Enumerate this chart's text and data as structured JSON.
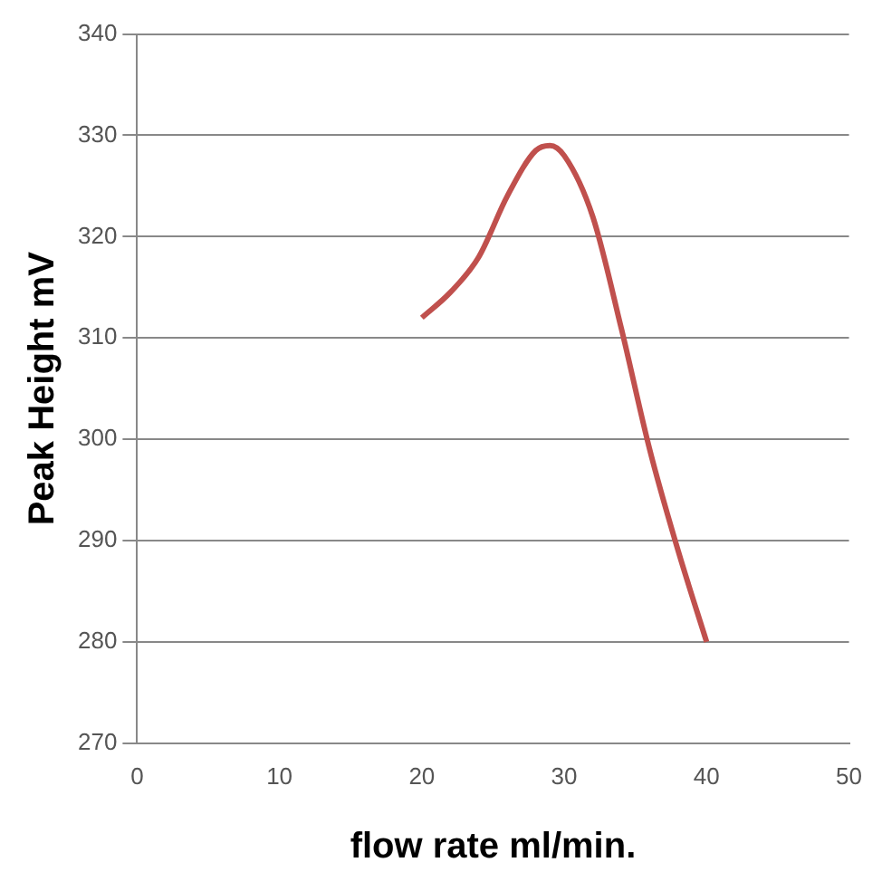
{
  "chart_data": {
    "type": "line",
    "xlabel": "flow rate ml/min.",
    "ylabel": "Peak Height mV",
    "series": [
      {
        "color": "#c0504d",
        "x": [
          20,
          22,
          24,
          26,
          28,
          29,
          30,
          32,
          34,
          36,
          38,
          40
        ],
        "values": [
          312,
          314.5,
          318,
          324,
          328.5,
          329,
          328,
          322,
          311,
          299,
          289,
          280
        ]
      }
    ],
    "xlim": [
      0,
      50
    ],
    "xticks": [
      0,
      10,
      20,
      30,
      40,
      50
    ],
    "ylim": [
      270,
      340
    ],
    "yticks": [
      270,
      280,
      290,
      300,
      310,
      320,
      330,
      340
    ],
    "grid": "y",
    "marker": "none",
    "line_style": "solid",
    "legend": false
  }
}
